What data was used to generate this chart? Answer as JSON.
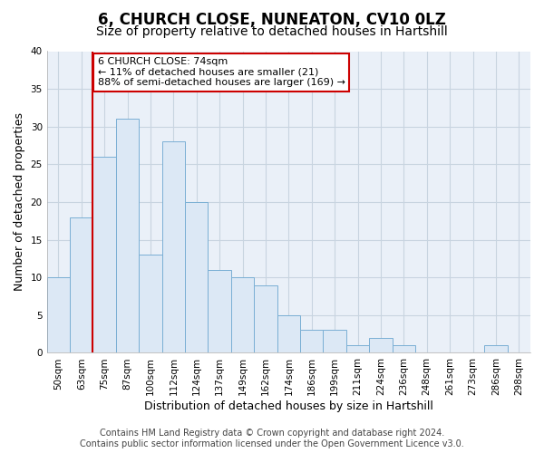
{
  "title": "6, CHURCH CLOSE, NUNEATON, CV10 0LZ",
  "subtitle": "Size of property relative to detached houses in Hartshill",
  "xlabel": "Distribution of detached houses by size in Hartshill",
  "ylabel": "Number of detached properties",
  "bar_labels": [
    "50sqm",
    "63sqm",
    "75sqm",
    "87sqm",
    "100sqm",
    "112sqm",
    "124sqm",
    "137sqm",
    "149sqm",
    "162sqm",
    "174sqm",
    "186sqm",
    "199sqm",
    "211sqm",
    "224sqm",
    "236sqm",
    "248sqm",
    "261sqm",
    "273sqm",
    "286sqm",
    "298sqm"
  ],
  "bar_values": [
    10,
    18,
    26,
    31,
    13,
    28,
    20,
    11,
    10,
    9,
    5,
    3,
    3,
    1,
    2,
    1,
    0,
    0,
    0,
    1,
    0
  ],
  "bar_color": "#dce8f5",
  "bar_edge_color": "#7aafd4",
  "highlight_bar_index": 2,
  "highlight_line_color": "#cc0000",
  "annotation_text": "6 CHURCH CLOSE: 74sqm\n← 11% of detached houses are smaller (21)\n88% of semi-detached houses are larger (169) →",
  "annotation_box_edge_color": "#cc0000",
  "ylim": [
    0,
    40
  ],
  "yticks": [
    0,
    5,
    10,
    15,
    20,
    25,
    30,
    35,
    40
  ],
  "footer_line1": "Contains HM Land Registry data © Crown copyright and database right 2024.",
  "footer_line2": "Contains public sector information licensed under the Open Government Licence v3.0.",
  "bg_color": "#ffffff",
  "grid_color": "#c8d4e0",
  "title_fontsize": 12,
  "subtitle_fontsize": 10,
  "axis_label_fontsize": 9,
  "tick_fontsize": 7.5,
  "footer_fontsize": 7,
  "annotation_fontsize": 8
}
